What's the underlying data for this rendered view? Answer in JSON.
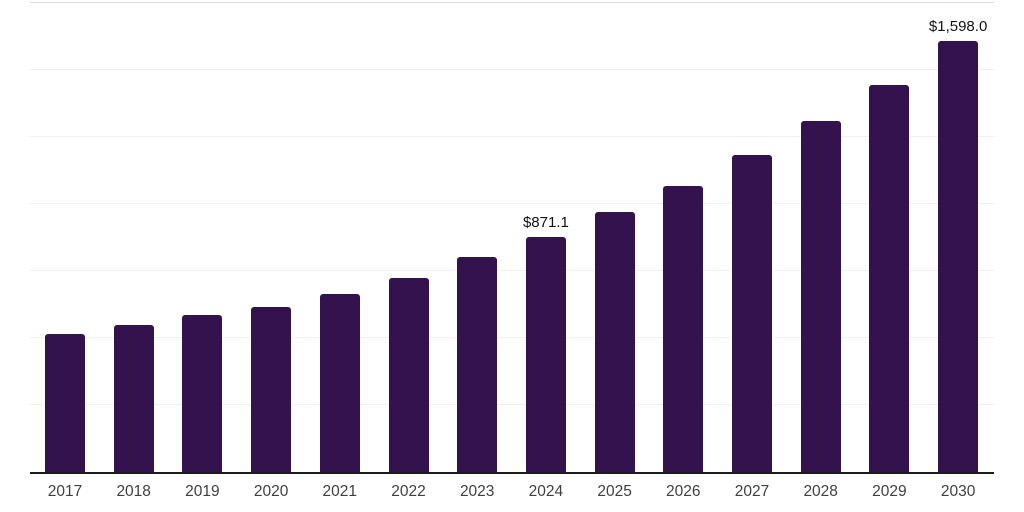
{
  "chart_data": {
    "type": "bar",
    "title": "",
    "xlabel": "",
    "ylabel": "",
    "categories": [
      "2017",
      "2018",
      "2019",
      "2020",
      "2021",
      "2022",
      "2023",
      "2024",
      "2025",
      "2026",
      "2027",
      "2028",
      "2029",
      "2030"
    ],
    "values": [
      511.6,
      546.1,
      583.1,
      611.7,
      659.8,
      718.0,
      795.9,
      871.1,
      964.9,
      1061.3,
      1175.1,
      1300.0,
      1435.7,
      1598.0
    ],
    "value_prefix": "$",
    "data_labels": [
      {
        "category": "2024",
        "text": "$871.1"
      },
      {
        "category": "2030",
        "text": "$1,598.0"
      }
    ],
    "ylim": [
      0,
      1742
    ],
    "gridline_count": 7,
    "grid": "horizontal-only",
    "legend": "none",
    "y_axis_ticks": "none",
    "colors": {
      "bar": "#33124D",
      "axis_line": "#1C1C1C",
      "gridline": "#EFEFEF",
      "top_gridline": "#DCDCDC",
      "tick_label": "#3F3F3F",
      "data_label": "#121212",
      "background": "#FFFFFF"
    }
  }
}
